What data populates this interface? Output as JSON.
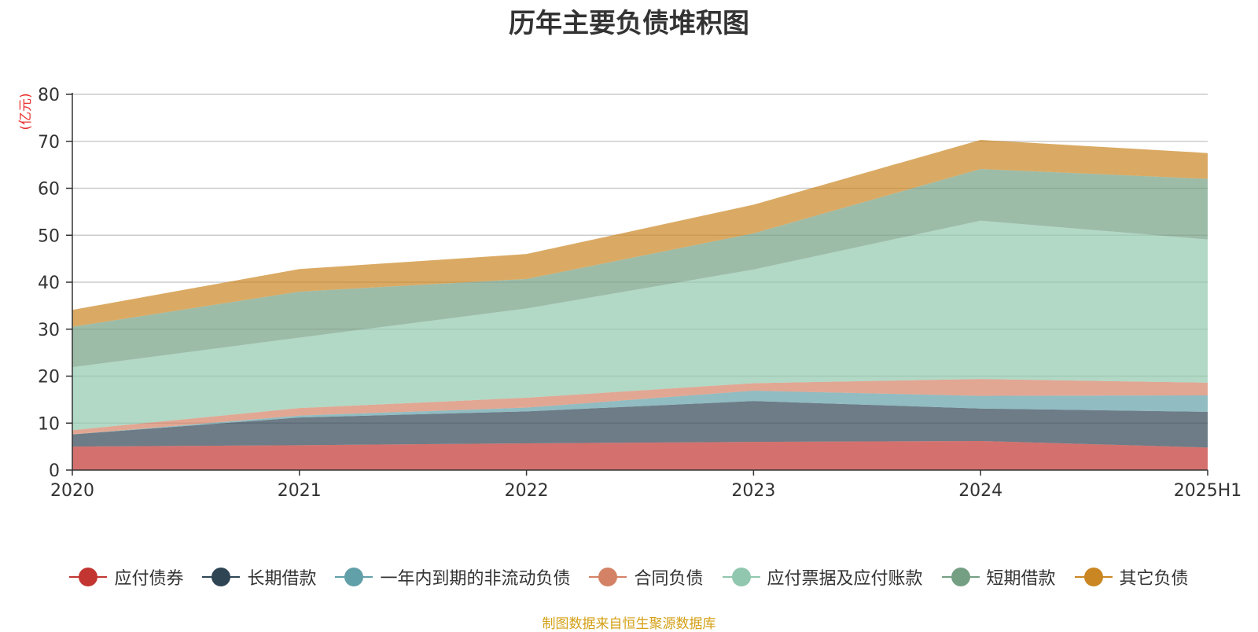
{
  "chart_data": {
    "type": "area",
    "stacked": true,
    "title": "历年主要负债堆积图",
    "ylabel": "(亿元)",
    "xlabel": "",
    "categories": [
      "2020",
      "2021",
      "2022",
      "2023",
      "2024",
      "2025H1"
    ],
    "ylim": [
      0,
      80
    ],
    "yticks": [
      "0",
      "10",
      "20",
      "30",
      "40",
      "50",
      "60",
      "70",
      "80"
    ],
    "grid": true,
    "legend_position": "bottom",
    "series": [
      {
        "name": "应付债券",
        "color": "#c23531",
        "values": [
          5.0,
          5.3,
          5.7,
          6.0,
          6.2,
          4.8
        ]
      },
      {
        "name": "长期借款",
        "color": "#2f4554",
        "values": [
          2.6,
          5.9,
          6.8,
          8.7,
          6.9,
          7.6
        ]
      },
      {
        "name": "一年内到期的非流动负债",
        "color": "#61a0a8",
        "values": [
          0.0,
          0.4,
          0.8,
          2.2,
          2.7,
          3.5
        ]
      },
      {
        "name": "合同负债",
        "color": "#d48265",
        "values": [
          0.9,
          1.6,
          2.1,
          1.6,
          3.6,
          2.7
        ]
      },
      {
        "name": "应付票据及应付账款",
        "color": "#91c7ae",
        "values": [
          13.4,
          15.0,
          19.0,
          24.2,
          33.7,
          30.5
        ]
      },
      {
        "name": "短期借款",
        "color": "#749f83",
        "values": [
          8.6,
          9.8,
          6.3,
          7.7,
          11.0,
          12.9
        ]
      },
      {
        "name": "其它负债",
        "color": "#ca8622",
        "values": [
          3.6,
          4.8,
          5.3,
          6.1,
          6.2,
          5.5
        ]
      }
    ]
  },
  "source_note": "制图数据来自恒生聚源数据库"
}
